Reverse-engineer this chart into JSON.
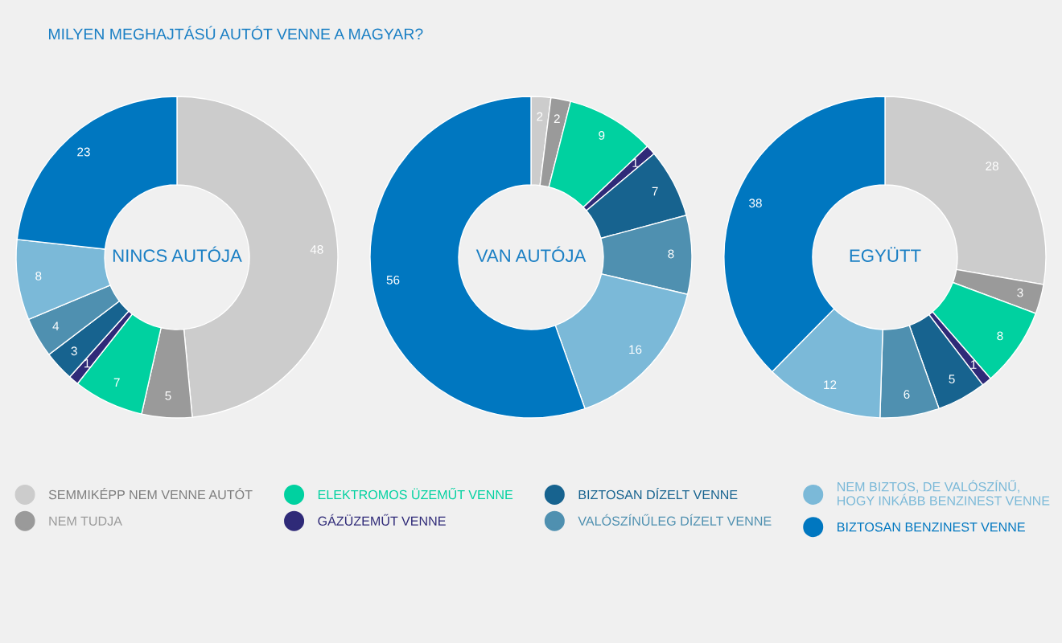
{
  "chart_data": [
    {
      "type": "donut",
      "title": "NINCS AUTÓJA",
      "annotations": [
        "MILYEN MEGHAJTÁSÚ AUTÓT VENNE A MAGYAR?"
      ],
      "categories": [
        "SEMMIKÉPP NEM VENNE AUTÓT",
        "NEM TUDJA",
        "ELEKTROMOS ÜZEMŰT VENNE",
        "GÁZÜZEMŰT VENNE",
        "BIZTOSAN DÍZELT VENNE",
        "VALÓSZÍNŰLEG DÍZELT VENNE",
        "NEM BIZTOS, DE VALÓSZÍNŰ,\nHOGY INKÁBB BENZINEST VENNE",
        "BIZTOSAN BENZINEST VENNE"
      ],
      "values": [
        48,
        5,
        7,
        1,
        3,
        4,
        8,
        23
      ],
      "colors": [
        "#cccccc",
        "#9a9a9a",
        "#00d1a0",
        "#2f2a78",
        "#17638f",
        "#4f90b0",
        "#7bb9d8",
        "#0077c0"
      ],
      "data_labels": true,
      "legend": "bottom"
    },
    {
      "type": "donut",
      "title": "VAN AUTÓJA",
      "categories": [
        null,
        null,
        null,
        null,
        null,
        null,
        null,
        null
      ],
      "values": [
        2,
        2,
        9,
        1,
        7,
        8,
        16,
        56
      ],
      "colors": [
        "#cccccc",
        "#9a9a9a",
        "#00d1a0",
        "#2f2a78",
        "#17638f",
        "#4f90b0",
        "#7bb9d8",
        "#0077c0"
      ],
      "data_labels": true
    },
    {
      "type": "donut",
      "title": "EGYÜTT",
      "categories": [
        null,
        null,
        null,
        null,
        null,
        null,
        null,
        null
      ],
      "values": [
        28,
        3,
        8,
        1,
        5,
        6,
        12,
        38
      ],
      "colors": [
        "#cccccc",
        "#9a9a9a",
        "#00d1a0",
        "#2f2a78",
        "#17638f",
        "#4f90b0",
        "#7bb9d8",
        "#0077c0"
      ],
      "data_labels": true
    }
  ]
}
